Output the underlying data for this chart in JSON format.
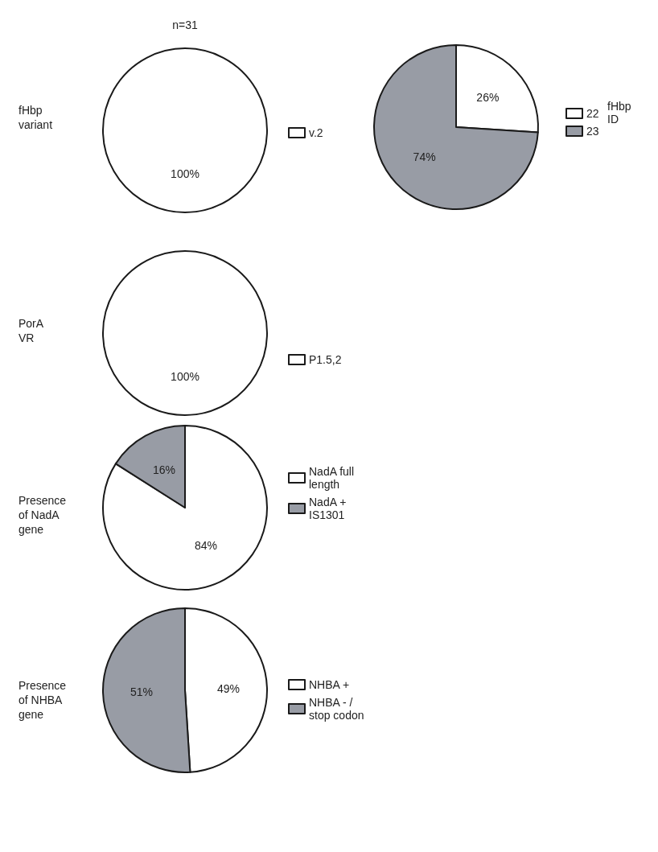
{
  "chart_data": [
    {
      "type": "pie",
      "title": "fHbp variant",
      "annotations": [
        "n=31"
      ],
      "categories": [
        "v.2"
      ],
      "values": [
        100
      ],
      "colors": [
        "#ffffff"
      ],
      "value_labels": [
        "100%"
      ],
      "legend": "right"
    },
    {
      "type": "pie",
      "legend_title": "fHbp ID",
      "categories": [
        "22",
        "23"
      ],
      "values": [
        26,
        74
      ],
      "colors": [
        "#ffffff",
        "#989ca5"
      ],
      "value_labels": [
        "26%",
        "74%"
      ],
      "legend": "right"
    },
    {
      "type": "pie",
      "title": "PorA VR",
      "categories": [
        "P1.5,2"
      ],
      "values": [
        100
      ],
      "colors": [
        "#ffffff"
      ],
      "value_labels": [
        "100%"
      ],
      "legend": "right"
    },
    {
      "type": "pie",
      "title": "Presence of NadA gene",
      "categories": [
        "NadA full length",
        "NadA + IS1301"
      ],
      "values": [
        84,
        16
      ],
      "colors": [
        "#ffffff",
        "#989ca5"
      ],
      "value_labels": [
        "84%",
        "16%"
      ],
      "legend": "right"
    },
    {
      "type": "pie",
      "title": "Presence of NHBA gene",
      "categories": [
        "NHBA +",
        "NHBA - / stop codon"
      ],
      "values": [
        49,
        51
      ],
      "colors": [
        "#ffffff",
        "#989ca5"
      ],
      "value_labels": [
        "49%",
        "51%"
      ],
      "legend": "right"
    }
  ]
}
